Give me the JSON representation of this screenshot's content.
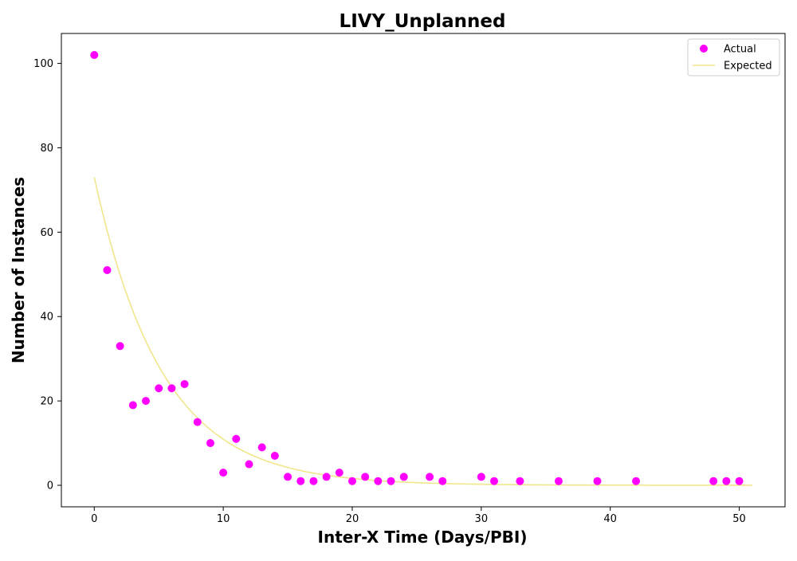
{
  "chart_data": {
    "type": "scatter",
    "title": "LIVY_Unplanned",
    "xlabel": "Inter-X Time (Days/PBI)",
    "ylabel": "Number of Instances",
    "xlim": [
      -2.55,
      53.55
    ],
    "ylim": [
      -5.1,
      107.1
    ],
    "xticks": [
      0,
      10,
      20,
      30,
      40,
      50
    ],
    "yticks": [
      0,
      20,
      40,
      60,
      80,
      100
    ],
    "grid": false,
    "legend_position": "top-right",
    "series": [
      {
        "name": "Actual",
        "kind": "scatter",
        "color": "#ff00ff",
        "points": [
          [
            0,
            102
          ],
          [
            1,
            51
          ],
          [
            2,
            33
          ],
          [
            3,
            19
          ],
          [
            4,
            20
          ],
          [
            5,
            23
          ],
          [
            6,
            23
          ],
          [
            7,
            24
          ],
          [
            8,
            15
          ],
          [
            9,
            10
          ],
          [
            10,
            3
          ],
          [
            11,
            11
          ],
          [
            12,
            5
          ],
          [
            13,
            9
          ],
          [
            14,
            7
          ],
          [
            15,
            2
          ],
          [
            16,
            1
          ],
          [
            17,
            1
          ],
          [
            18,
            2
          ],
          [
            19,
            3
          ],
          [
            20,
            1
          ],
          [
            21,
            2
          ],
          [
            22,
            1
          ],
          [
            23,
            1
          ],
          [
            24,
            2
          ],
          [
            26,
            2
          ],
          [
            27,
            1
          ],
          [
            30,
            2
          ],
          [
            31,
            1
          ],
          [
            33,
            1
          ],
          [
            36,
            1
          ],
          [
            39,
            1
          ],
          [
            42,
            1
          ],
          [
            48,
            1
          ],
          [
            49,
            1
          ],
          [
            50,
            1
          ]
        ]
      },
      {
        "name": "Expected",
        "kind": "line",
        "color": "#f0e68c",
        "function": "exponential",
        "amplitude": 73,
        "rate": 0.19,
        "x_range": [
          0,
          51
        ]
      }
    ]
  }
}
